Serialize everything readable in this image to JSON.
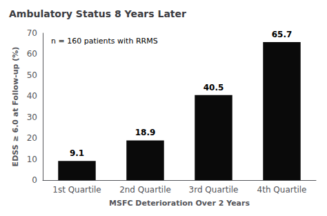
{
  "chart_data": {
    "type": "bar",
    "title": "Ambulatory Status 8 Years Later",
    "categories": [
      "1st Quartile",
      "2nd Quartile",
      "3rd Quartile",
      "4th Quartile"
    ],
    "values": [
      9.1,
      18.9,
      40.5,
      65.7
    ],
    "color": "#0a0a0a",
    "xlabel": "MSFC Deterioration Over 2 Years",
    "ylabel": "EDSS ≥ 6.0 at Follow-up (%)",
    "annotation": "n = 160 patients with RRMS",
    "ylim": [
      0,
      70
    ],
    "yticks": [
      0,
      10,
      20,
      30,
      40,
      50,
      60,
      70
    ],
    "grid": false,
    "data_labels": true
  }
}
